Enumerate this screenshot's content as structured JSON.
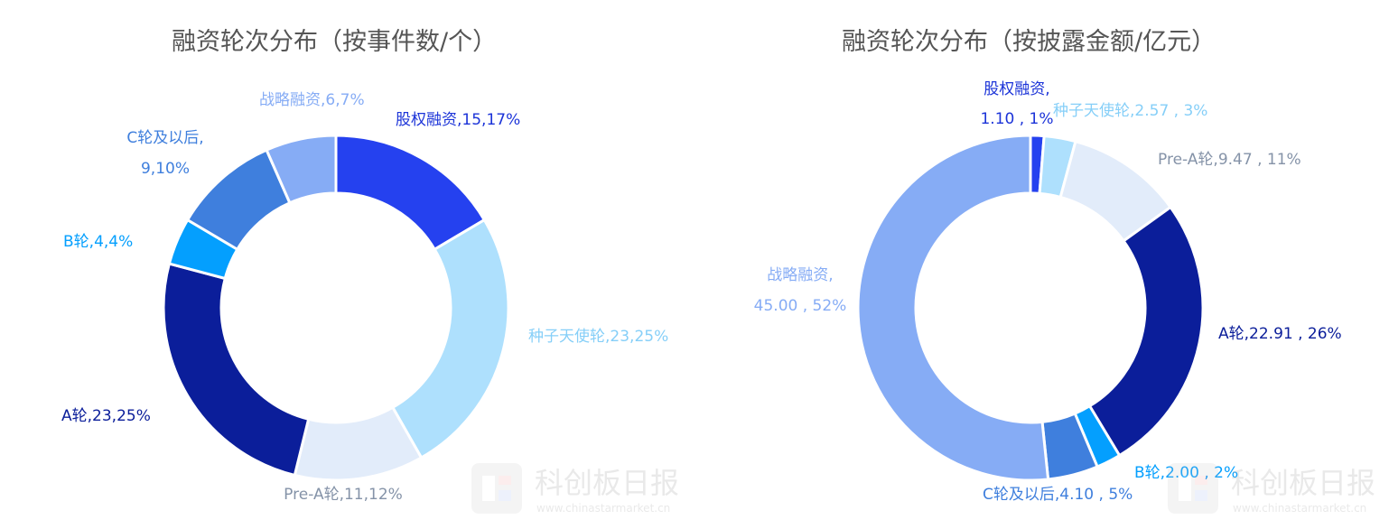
{
  "chart_data": [
    {
      "type": "pie",
      "style": "donut",
      "title": "融资轮次分布（按事件数/个）",
      "slices": [
        {
          "name": "股权融资",
          "value": 15,
          "percent": "17%",
          "label": "股权融资,15,17%",
          "color": "#2541ef"
        },
        {
          "name": "种子天使轮",
          "value": 23,
          "percent": "25%",
          "label": "种子天使轮,23,25%",
          "color": "#aee0fd"
        },
        {
          "name": "Pre-A轮",
          "value": 11,
          "percent": "12%",
          "label": "Pre-A轮,11,12%",
          "color": "#e2ecfa"
        },
        {
          "name": "A轮",
          "value": 23,
          "percent": "25%",
          "label": "A轮,23,25%",
          "color": "#0b1e9a"
        },
        {
          "name": "B轮",
          "value": 4,
          "percent": "4%",
          "label": "B轮,4,4%",
          "color": "#049ffe"
        },
        {
          "name": "C轮及以后",
          "value": 9,
          "percent": "10%",
          "label": [
            "C轮及以后,",
            "9,10%"
          ],
          "color": "#3f7fdd"
        },
        {
          "name": "战略融资",
          "value": 6,
          "percent": "7%",
          "label": "战略融资,6,7%",
          "color": "#86acf5"
        }
      ]
    },
    {
      "type": "pie",
      "style": "donut",
      "title": "融资轮次分布（按披露金额/亿元）",
      "slices": [
        {
          "name": "股权融资",
          "value": 1.1,
          "percent": "1%",
          "label": [
            "股权融资,",
            "1.10 , 1%"
          ],
          "color": "#2541ef"
        },
        {
          "name": "种子天使轮",
          "value": 2.57,
          "percent": "3%",
          "label": "种子天使轮,2.57 , 3%",
          "color": "#aee0fd"
        },
        {
          "name": "Pre-A轮",
          "value": 9.47,
          "percent": "11%",
          "label": "Pre-A轮,9.47 , 11%",
          "color": "#e2ecfa"
        },
        {
          "name": "A轮",
          "value": 22.91,
          "percent": "26%",
          "label": "A轮,22.91 , 26%",
          "color": "#0b1e9a"
        },
        {
          "name": "B轮",
          "value": 2.0,
          "percent": "2%",
          "label": "B轮,2.00 , 2%",
          "color": "#049ffe"
        },
        {
          "name": "C轮及以后",
          "value": 4.1,
          "percent": "5%",
          "label": "C轮及以后,4.10 , 5%",
          "color": "#3f7fdd"
        },
        {
          "name": "战略融资",
          "value": 45.0,
          "percent": "52%",
          "label": [
            "战略融资,",
            "45.00 , 52%"
          ],
          "color": "#86acf5"
        }
      ]
    }
  ],
  "label_colors": {
    "股权融资": "#1b33d8",
    "种子天使轮": "#86cff8",
    "Pre-A轮": "#8593a8",
    "A轮": "#0b1e9a",
    "B轮": "#049ffe",
    "C轮及以后": "#3f7fdd",
    "战略融资": "#86acf5"
  },
  "watermark": {
    "name": "科创板日报",
    "url": "www.chinastarmarket.cn"
  }
}
